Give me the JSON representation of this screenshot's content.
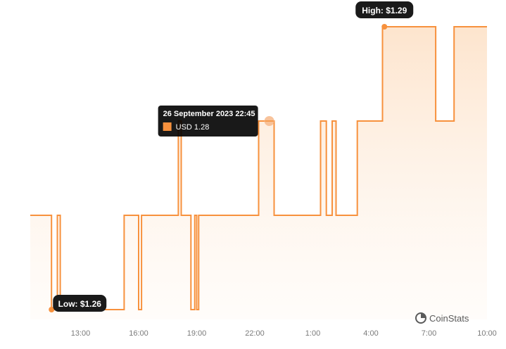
{
  "chart_data": {
    "type": "area",
    "x_unit": "hours",
    "x_range": [
      10.4,
      34.0
    ],
    "y_range": [
      1.26,
      1.29
    ],
    "x_ticks": [
      {
        "value": 13,
        "label": "13:00"
      },
      {
        "value": 16,
        "label": "16:00"
      },
      {
        "value": 19,
        "label": "19:00"
      },
      {
        "value": 22,
        "label": "22:00"
      },
      {
        "value": 25,
        "label": "1:00"
      },
      {
        "value": 28,
        "label": "4:00"
      },
      {
        "value": 31,
        "label": "7:00"
      },
      {
        "value": 34,
        "label": "10:00"
      }
    ],
    "series": [
      {
        "name": "USD",
        "color": "#f7913d",
        "points": [
          [
            10.4,
            1.27
          ],
          [
            11.5,
            1.27
          ],
          [
            11.5,
            1.26
          ],
          [
            11.8,
            1.26
          ],
          [
            11.8,
            1.27
          ],
          [
            11.95,
            1.27
          ],
          [
            11.95,
            1.26
          ],
          [
            15.25,
            1.26
          ],
          [
            15.25,
            1.27
          ],
          [
            16.0,
            1.27
          ],
          [
            16.0,
            1.26
          ],
          [
            16.15,
            1.26
          ],
          [
            16.15,
            1.27
          ],
          [
            18.05,
            1.27
          ],
          [
            18.05,
            1.28
          ],
          [
            18.2,
            1.28
          ],
          [
            18.2,
            1.27
          ],
          [
            18.7,
            1.27
          ],
          [
            18.7,
            1.26
          ],
          [
            18.9,
            1.26
          ],
          [
            18.9,
            1.27
          ],
          [
            19.0,
            1.27
          ],
          [
            19.0,
            1.26
          ],
          [
            19.1,
            1.26
          ],
          [
            19.1,
            1.27
          ],
          [
            22.2,
            1.27
          ],
          [
            22.2,
            1.28
          ],
          [
            23.0,
            1.28
          ],
          [
            23.0,
            1.27
          ],
          [
            25.4,
            1.27
          ],
          [
            25.4,
            1.28
          ],
          [
            25.7,
            1.28
          ],
          [
            25.7,
            1.27
          ],
          [
            26.0,
            1.27
          ],
          [
            26.0,
            1.28
          ],
          [
            26.2,
            1.28
          ],
          [
            26.2,
            1.27
          ],
          [
            27.3,
            1.27
          ],
          [
            27.3,
            1.28
          ],
          [
            28.6,
            1.28
          ],
          [
            28.6,
            1.29
          ],
          [
            31.35,
            1.29
          ],
          [
            31.35,
            1.28
          ],
          [
            32.3,
            1.28
          ],
          [
            32.3,
            1.29
          ],
          [
            34.0,
            1.29
          ]
        ]
      }
    ],
    "high": {
      "label": "High: $1.29",
      "x": 28.7,
      "y": 1.29
    },
    "low": {
      "label": "Low: $1.26",
      "x": 11.5,
      "y": 1.26
    },
    "tooltip": {
      "title": "26 September 2023 22:45",
      "series_label": "USD 1.28",
      "x": 22.75,
      "y": 1.28
    },
    "grid": false
  },
  "brand": {
    "name": "CoinStats"
  },
  "colors": {
    "line": "#f7913d",
    "fill": "#fde8d5",
    "badge": "#1a1a1a",
    "marker_hover": "#f7b88a"
  }
}
